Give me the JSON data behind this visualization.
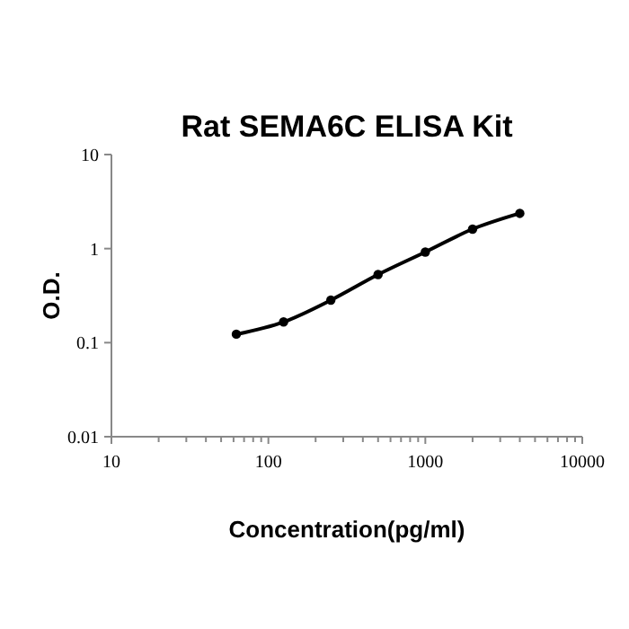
{
  "chart_data": {
    "type": "line",
    "title": "Rat SEMA6C ELISA Kit",
    "xlabel": "Concentration(pg/ml)",
    "ylabel": "O.D.",
    "log": "xy",
    "marker": "circle",
    "line_style": "solid",
    "x": [
      62.5,
      125,
      250,
      500,
      1000,
      2000,
      4000
    ],
    "series": [
      {
        "color": "#000000",
        "values": [
          0.123,
          0.166,
          0.283,
          0.53,
          0.92,
          1.61,
          2.37
        ]
      }
    ],
    "xlim": [
      10,
      10000
    ],
    "ylim": [
      0.01,
      10
    ],
    "xticks": [
      10,
      {
        "value": 20,
        "label": null
      },
      {
        "value": 30,
        "label": null
      },
      {
        "value": 40,
        "label": null
      },
      {
        "value": 50,
        "label": null
      },
      {
        "value": 60,
        "label": null
      },
      {
        "value": 70,
        "label": null
      },
      {
        "value": 80,
        "label": null
      },
      {
        "value": 90,
        "label": null
      },
      100,
      {
        "value": 200,
        "label": null
      },
      {
        "value": 300,
        "label": null
      },
      {
        "value": 400,
        "label": null
      },
      {
        "value": 500,
        "label": null
      },
      {
        "value": 600,
        "label": null
      },
      {
        "value": 700,
        "label": null
      },
      {
        "value": 800,
        "label": null
      },
      {
        "value": 900,
        "label": null
      },
      1000,
      {
        "value": 2000,
        "label": null
      },
      {
        "value": 3000,
        "label": null
      },
      {
        "value": 4000,
        "label": null
      },
      {
        "value": 5000,
        "label": null
      },
      {
        "value": 6000,
        "label": null
      },
      {
        "value": 7000,
        "label": null
      },
      {
        "value": 8000,
        "label": null
      },
      {
        "value": 9000,
        "label": null
      },
      10000
    ],
    "yticks": [
      0.01,
      0.1,
      1,
      10
    ],
    "grid": false
  }
}
